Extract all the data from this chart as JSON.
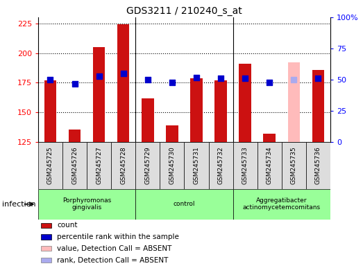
{
  "title": "GDS3211 / 210240_s_at",
  "samples": [
    "GSM245725",
    "GSM245726",
    "GSM245727",
    "GSM245728",
    "GSM245729",
    "GSM245730",
    "GSM245731",
    "GSM245732",
    "GSM245733",
    "GSM245734",
    "GSM245735",
    "GSM245736"
  ],
  "count_values": [
    177,
    136,
    205,
    224,
    162,
    139,
    179,
    177,
    191,
    132,
    192,
    186
  ],
  "rank_values": [
    50,
    47,
    53,
    55,
    50,
    48,
    52,
    51,
    51,
    48,
    50,
    51
  ],
  "absent_flags": [
    false,
    false,
    false,
    false,
    false,
    false,
    false,
    false,
    false,
    false,
    true,
    false
  ],
  "groups": [
    {
      "label": "Porphyromonas\ngingivalis",
      "start": 0,
      "end": 4,
      "color": "#99ff99"
    },
    {
      "label": "control",
      "start": 4,
      "end": 8,
      "color": "#99ff99"
    },
    {
      "label": "Aggregatibacter\nactinomycetemcomitans",
      "start": 8,
      "end": 12,
      "color": "#99ff99"
    }
  ],
  "ylim_left": [
    125,
    230
  ],
  "ylim_right": [
    0,
    100
  ],
  "yticks_left": [
    125,
    150,
    175,
    200,
    225
  ],
  "yticks_right": [
    0,
    25,
    50,
    75,
    100
  ],
  "ytick_labels_right": [
    "0",
    "25",
    "50",
    "75",
    "100%"
  ],
  "bar_color_present": "#cc1111",
  "bar_color_absent": "#ffbbbb",
  "dot_color_present": "#0000cc",
  "dot_color_absent": "#aaaaee",
  "bar_width": 0.5,
  "dot_size": 28,
  "grid_color": "black",
  "sample_bg": "#dddddd",
  "legend_items": [
    {
      "color": "#cc1111",
      "label": "count"
    },
    {
      "color": "#0000cc",
      "label": "percentile rank within the sample"
    },
    {
      "color": "#ffbbbb",
      "label": "value, Detection Call = ABSENT"
    },
    {
      "color": "#aaaaee",
      "label": "rank, Detection Call = ABSENT"
    }
  ]
}
